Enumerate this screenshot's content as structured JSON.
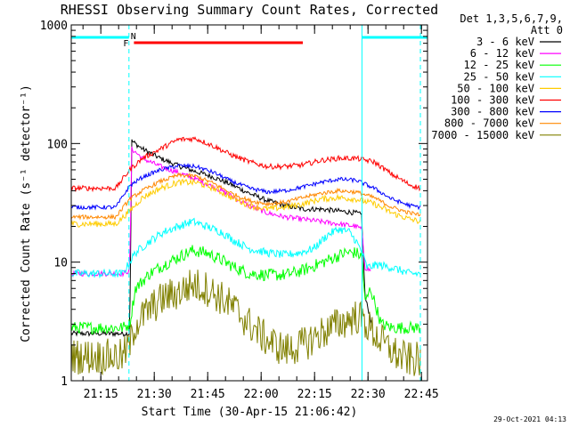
{
  "chart_data": {
    "type": "line",
    "title": "RHESSI Observing Summary Count Rates, Corrected",
    "xlabel": "Start Time (30-Apr-15 21:06:42)",
    "ylabel": "Corrected Count Rate (s⁻¹ detector⁻¹)",
    "yscale": "log",
    "ylim": [
      1,
      1000
    ],
    "xlim_minutes_after_start": [
      0,
      100
    ],
    "x_tick_labels": [
      "21:15",
      "21:30",
      "21:45",
      "22:00",
      "22:15",
      "22:30",
      "22:45"
    ],
    "y_tick_labels": [
      "1",
      "10",
      "100",
      "1000"
    ],
    "x_tick_minutes": [
      8.3,
      23.3,
      38.3,
      53.3,
      68.3,
      83.3,
      98.3
    ],
    "legend_header": [
      "Det 1,3,5,6,7,9,",
      "Att 0"
    ],
    "legend_position": "right",
    "footer_date": "29-Oct-2021 04:13",
    "markers": {
      "night_label": "N",
      "flare_label": "F",
      "night_color": "#00ffff",
      "flare_color": "#ff0000",
      "night_intervals_minutes": [
        [
          0,
          16.2
        ],
        [
          81.6,
          100
        ]
      ],
      "flare_interval_minutes": [
        17.6,
        65.0
      ],
      "vertical_lines_minutes": [
        0,
        16.2,
        81.6,
        98.0
      ]
    },
    "series": [
      {
        "name": "3 - 6 keV",
        "color": "#000000",
        "x": [
          0,
          16.4,
          17.0,
          20,
          25,
          30,
          35,
          40,
          45,
          50,
          55,
          60,
          65,
          70,
          75,
          80,
          81.5,
          82.5,
          84.5
        ],
        "y": [
          2.5,
          2.5,
          105,
          90,
          75,
          65,
          58,
          52,
          45,
          38,
          33,
          30,
          28,
          28,
          27,
          26,
          25,
          5,
          3
        ]
      },
      {
        "name": "6 - 12 keV",
        "color": "#ff00ff",
        "x": [
          0,
          14.5,
          16.4,
          17.0,
          20,
          25,
          30,
          35,
          40,
          45,
          50,
          55,
          60,
          65,
          70,
          75,
          80,
          81.5,
          82.5,
          84
        ],
        "y": [
          8,
          8,
          8.5,
          90,
          75,
          64,
          57,
          50,
          43,
          36,
          30,
          26,
          24,
          23,
          22,
          21,
          20,
          19,
          9,
          8.5
        ]
      },
      {
        "name": "12 - 25 keV",
        "color": "#00ff00",
        "x": [
          0,
          14.5,
          16.4,
          18,
          22,
          26,
          30,
          34,
          38,
          42,
          46,
          50,
          55,
          60,
          65,
          70,
          74,
          77,
          80,
          81.6,
          82.5,
          84,
          87,
          90,
          95,
          98
        ],
        "y": [
          2.8,
          2.8,
          3,
          6,
          8,
          9.5,
          11,
          12.5,
          12,
          10.5,
          9,
          8,
          7.8,
          7.8,
          8.5,
          9.8,
          11,
          12,
          12,
          11,
          4.5,
          6,
          3,
          2.8,
          2.8,
          2.8
        ]
      },
      {
        "name": "25 - 50 keV",
        "color": "#00ffff",
        "x": [
          0,
          14.5,
          16.4,
          18,
          22,
          26,
          30,
          34,
          38,
          42,
          46,
          50,
          55,
          60,
          64,
          68,
          72,
          75,
          78,
          80,
          81.6,
          83,
          86,
          90,
          95,
          98
        ],
        "y": [
          8,
          8,
          10,
          12,
          15,
          18,
          20,
          22,
          20,
          18,
          15,
          13,
          12,
          11.5,
          12,
          13,
          17,
          19,
          18,
          15,
          12,
          9,
          9.5,
          9,
          8,
          8
        ]
      },
      {
        "name": "50 - 100 keV",
        "color": "#ffcc00",
        "x": [
          0,
          12.5,
          16.4,
          20,
          25,
          30,
          35,
          40,
          45,
          50,
          55,
          60,
          65,
          70,
          75,
          80,
          85,
          90,
          95,
          98
        ],
        "y": [
          21,
          21,
          27,
          35,
          42,
          47,
          47,
          42,
          35,
          30,
          28,
          29,
          31,
          34,
          35,
          34,
          31,
          26,
          23,
          22
        ]
      },
      {
        "name": "100 - 300 keV",
        "color": "#ff0000",
        "x": [
          0,
          12.5,
          16.4,
          20,
          25,
          30,
          35,
          40,
          45,
          50,
          55,
          60,
          65,
          70,
          75,
          80,
          85,
          90,
          95,
          98
        ],
        "y": [
          42,
          42,
          60,
          75,
          90,
          108,
          110,
          95,
          80,
          70,
          64,
          64,
          66,
          72,
          75,
          75,
          70,
          55,
          45,
          42
        ]
      },
      {
        "name": "300 - 800 keV",
        "color": "#0000ff",
        "x": [
          0,
          12.5,
          16.4,
          20,
          25,
          30,
          35,
          40,
          45,
          50,
          55,
          60,
          65,
          70,
          75,
          80,
          85,
          90,
          95,
          98
        ],
        "y": [
          29,
          29,
          44,
          52,
          60,
          65,
          64,
          57,
          48,
          42,
          39,
          40,
          43,
          47,
          50,
          49,
          42,
          34,
          30,
          29
        ]
      },
      {
        "name": "800 - 7000 keV",
        "color": "#ff8800",
        "x": [
          0,
          12.5,
          16.4,
          20,
          25,
          30,
          35,
          40,
          45,
          50,
          55,
          60,
          65,
          70,
          75,
          80,
          85,
          90,
          95,
          98
        ],
        "y": [
          24,
          24,
          34,
          40,
          48,
          54,
          53,
          46,
          38,
          33,
          31,
          32,
          35,
          38,
          40,
          39,
          35,
          29,
          26,
          25
        ]
      },
      {
        "name": "7000 - 15000 keV",
        "color": "#808000",
        "x": [
          0,
          14.5,
          16.4,
          18,
          22,
          26,
          30,
          34,
          38,
          42,
          46,
          50,
          55,
          60,
          65,
          70,
          75,
          80,
          82,
          85,
          88,
          92,
          95,
          98
        ],
        "y": [
          1.6,
          1.6,
          2.0,
          3.0,
          4.0,
          5.0,
          5.5,
          6.5,
          6.0,
          5.0,
          4.0,
          3.0,
          2.2,
          1.8,
          2.0,
          2.5,
          3.0,
          3.5,
          3.2,
          2.5,
          2.0,
          1.6,
          1.5,
          1.5
        ]
      }
    ]
  }
}
